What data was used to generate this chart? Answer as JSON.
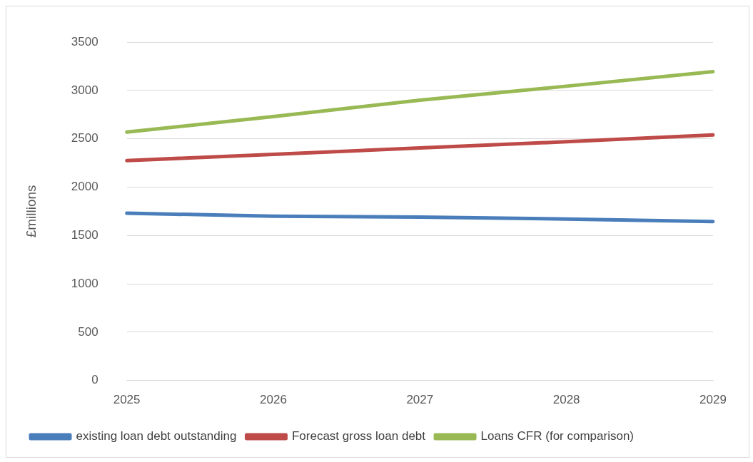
{
  "chart_data": {
    "type": "line",
    "ylabel": "£millions",
    "categories": [
      "2025",
      "2026",
      "2027",
      "2028",
      "2029"
    ],
    "series": [
      {
        "name": "existing loan debt outstanding",
        "color": "#4a7ebb",
        "values": [
          1730,
          1700,
          1690,
          1670,
          1645
        ]
      },
      {
        "name": "Forecast gross loan debt",
        "color": "#be4b48",
        "values": [
          2275,
          2340,
          2405,
          2470,
          2540
        ]
      },
      {
        "name": "Loans CFR (for comparison)",
        "color": "#98b954",
        "values": [
          2570,
          2730,
          2900,
          3045,
          3195
        ]
      }
    ],
    "ylim": [
      0,
      3500
    ],
    "yticks": [
      0,
      500,
      1000,
      1500,
      2000,
      2500,
      3000,
      3500
    ],
    "grid": "y",
    "legend": "bottom",
    "marker": "none",
    "line_style": "solid"
  }
}
